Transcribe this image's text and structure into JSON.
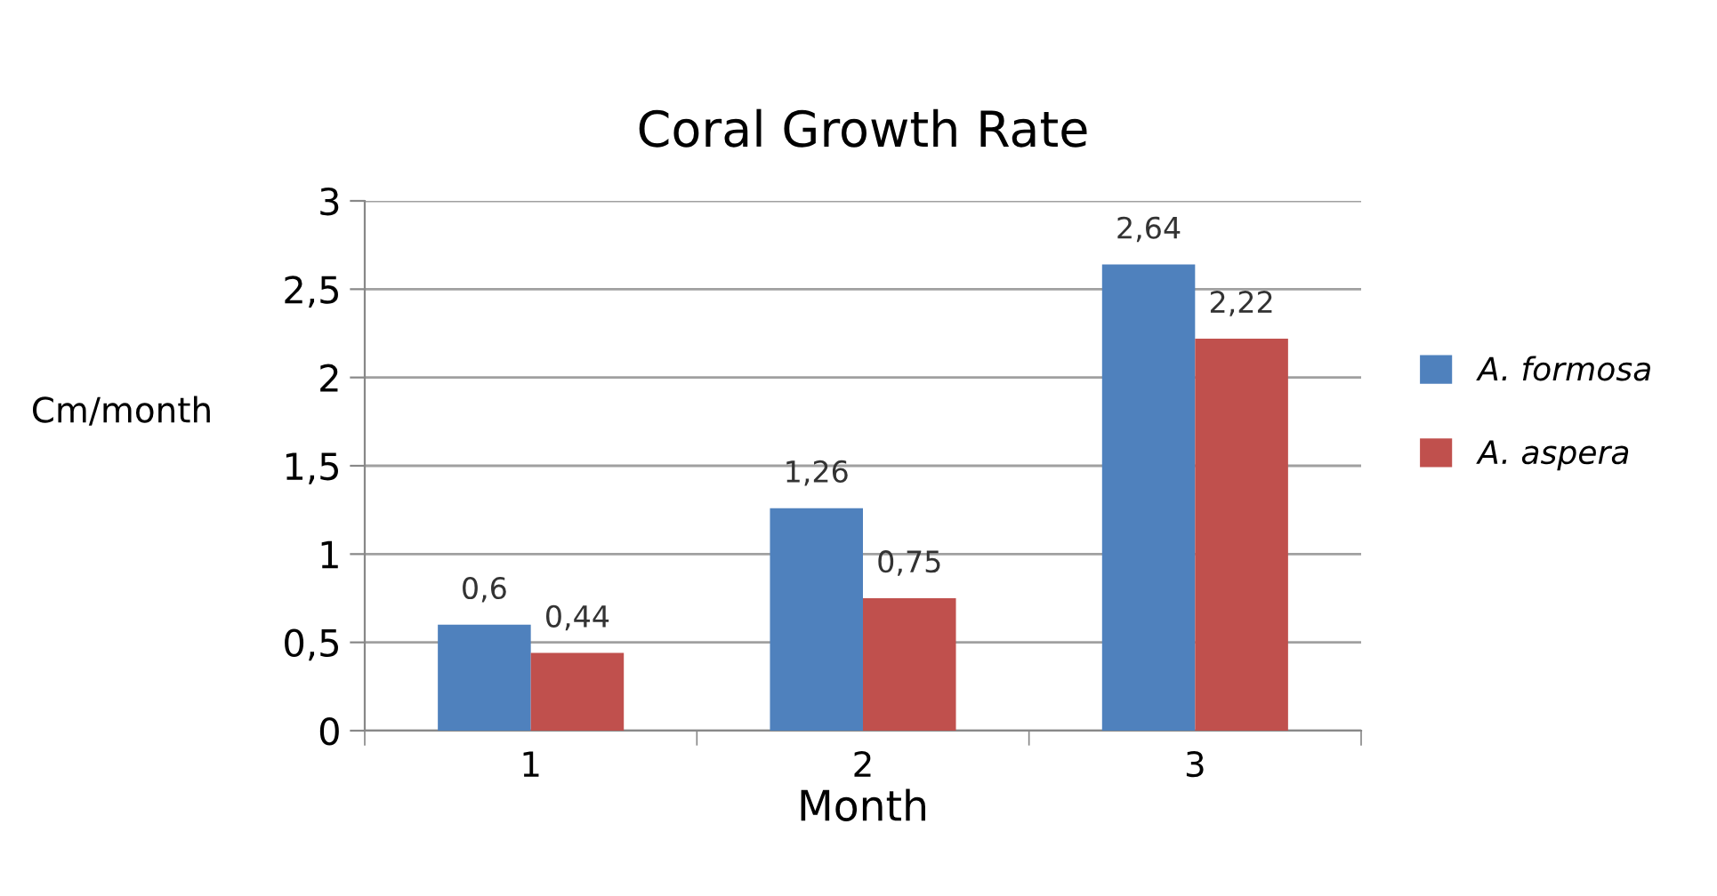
{
  "chart_data": {
    "type": "bar",
    "title": "Coral Growth Rate",
    "xlabel": "Month",
    "ylabel": "Cm/month",
    "categories": [
      "1",
      "2",
      "3"
    ],
    "series": [
      {
        "name": "A. formosa",
        "color": "#4f81bd",
        "values": [
          0.6,
          1.26,
          2.64
        ],
        "value_labels": [
          "0,6",
          "1,26",
          "2,64"
        ]
      },
      {
        "name": "A. aspera",
        "color": "#c0504d",
        "values": [
          0.44,
          0.75,
          2.22
        ],
        "value_labels": [
          "0,44",
          "0,75",
          "2,22"
        ]
      }
    ],
    "ylim": [
      0,
      3
    ],
    "yticks": [
      0,
      {
        "value": 0.5,
        "label": "0,5"
      },
      1,
      {
        "value": 1.5,
        "label": "1,5"
      },
      2,
      {
        "value": 2.5,
        "label": "2,5"
      },
      3
    ],
    "grid": "y",
    "legend": "right"
  }
}
